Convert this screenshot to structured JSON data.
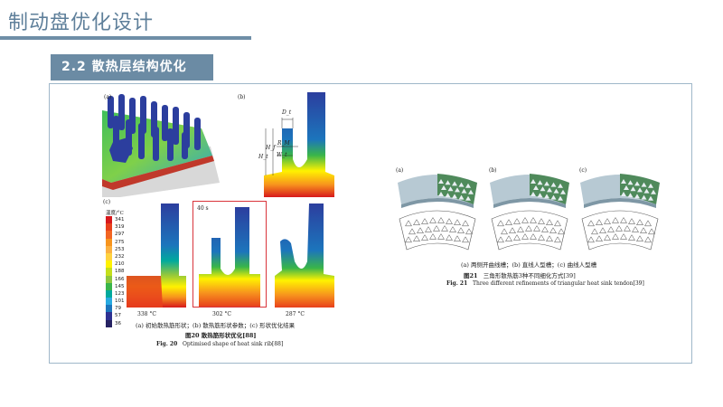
{
  "header": {
    "title": "制动盘优化设计"
  },
  "section": {
    "label": "2.2  散热层结构优化"
  },
  "fig20": {
    "panel_a_label": "(a)",
    "panel_b_label": "(b)",
    "panel_c_label": "(c)",
    "dim_labels": [
      "D_t",
      "H_t",
      "H_f",
      "R_M",
      "W_t"
    ],
    "legend_title": "温度/°C",
    "legend_values": [
      "341",
      "319",
      "297",
      "275",
      "253",
      "232",
      "210",
      "188",
      "166",
      "145",
      "123",
      "101",
      "79",
      "57",
      "36"
    ],
    "legend_colors": [
      "#d7191c",
      "#e8401c",
      "#f26522",
      "#f7941d",
      "#fbb040",
      "#ffd23f",
      "#fff200",
      "#c4df1b",
      "#8dc63f",
      "#39b54a",
      "#00a99d",
      "#27aae1",
      "#1c75bc",
      "#2e3192",
      "#262262"
    ],
    "time_label": "40 s",
    "temps": [
      "338 °C",
      "302 °C",
      "287 °C"
    ],
    "caption_cn": "(a) 初始散热筋形状；(b) 散热筋形状参数；(c) 形状优化结果",
    "title_cn": "图20   散热筋形状优化[88]",
    "title_en_bold": "Fig. 20",
    "title_en": "Optimised shape of heat sink rib[88]"
  },
  "fig21": {
    "labels": [
      "(a)",
      "(b)",
      "(c)"
    ],
    "caption_cn": "(a) 两侧开曲线槽；(b) 直线人型槽；(c) 曲线人型槽",
    "title_cn_bold": "图21",
    "title_cn": "三角形散热筋3种不同细化方式[39]",
    "title_en_bold": "Fig. 21",
    "title_en": "Three different refinements of triangular heat sink tendon[39]"
  }
}
